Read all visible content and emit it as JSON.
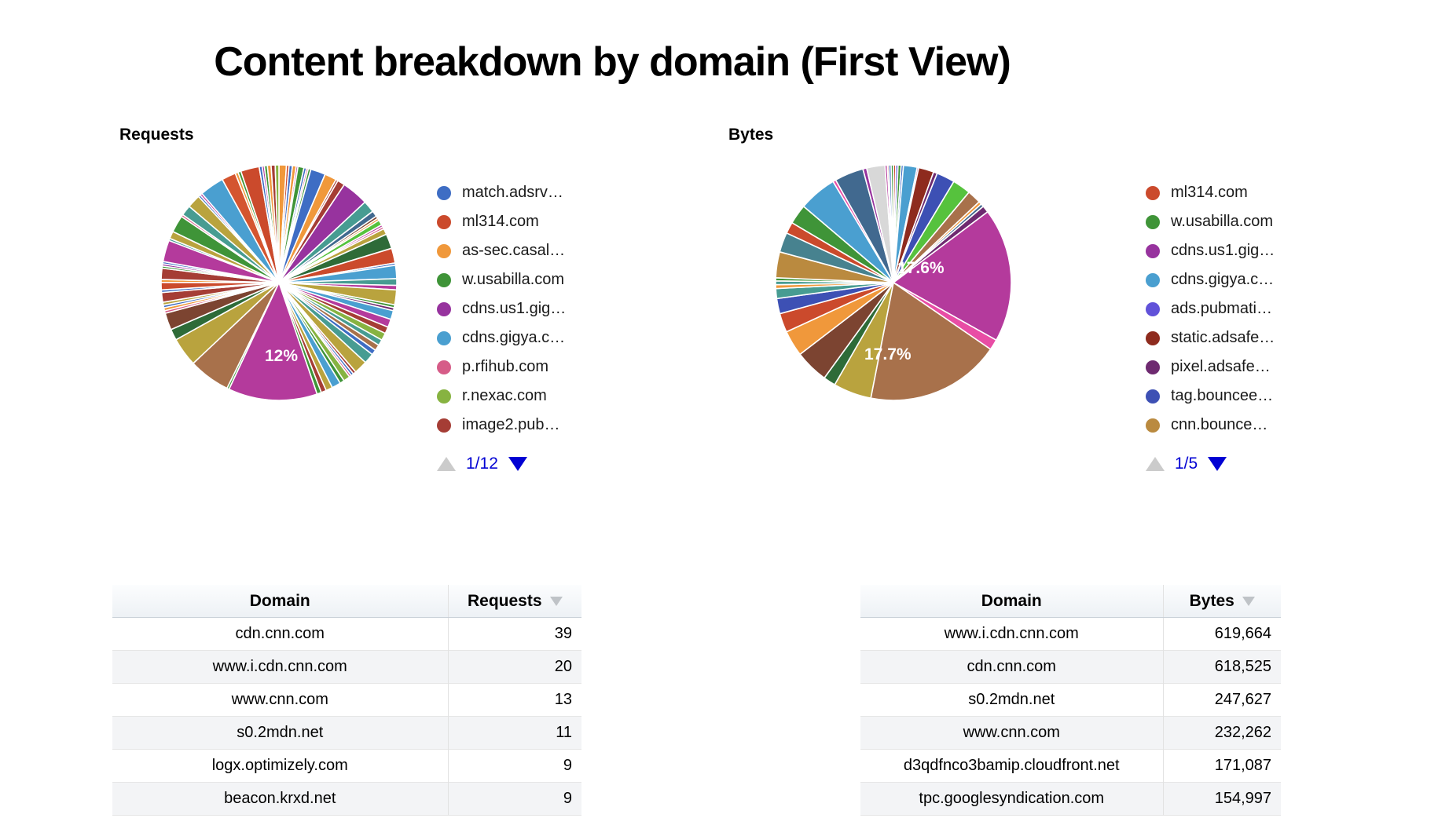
{
  "page_title": "Content breakdown by domain (First View)",
  "chart_data": [
    {
      "type": "pie",
      "title": "Requests",
      "pct_labels": [
        "12%"
      ],
      "legend": {
        "page": "1/12",
        "items": [
          {
            "label": "match.adsrv…",
            "color": "#3E6DC4"
          },
          {
            "label": "ml314.com",
            "color": "#CB4A2C"
          },
          {
            "label": "as-sec.casal…",
            "color": "#F0983B"
          },
          {
            "label": "w.usabilla.com",
            "color": "#3F9438"
          },
          {
            "label": "cdns.us1.gig…",
            "color": "#97339E"
          },
          {
            "label": "cdns.gigya.c…",
            "color": "#4A9FD0"
          },
          {
            "label": "p.rfihub.com",
            "color": "#D65C88"
          },
          {
            "label": "r.nexac.com",
            "color": "#87B341"
          },
          {
            "label": "image2.pub…",
            "color": "#A53D35"
          }
        ]
      },
      "slices": [
        [
          1.0,
          "#F0983B"
        ],
        [
          0.35,
          "#CB4A2C"
        ],
        [
          0.45,
          "#3E6DC4"
        ],
        [
          0.5,
          "#F0983B"
        ],
        [
          0.25,
          "#B43A9C"
        ],
        [
          0.8,
          "#3F9438"
        ],
        [
          0.35,
          "#3E6DC4"
        ],
        [
          0.25,
          "#D65C88"
        ],
        [
          0.35,
          "#3F9438"
        ],
        [
          2.0,
          "#3E6DC4"
        ],
        [
          1.6,
          "#F0983B"
        ],
        [
          0.3,
          "#A53D35"
        ],
        [
          1.0,
          "#A53D35"
        ],
        [
          3.6,
          "#97339E"
        ],
        [
          1.6,
          "#479C92"
        ],
        [
          0.8,
          "#41698F"
        ],
        [
          0.35,
          "#7C4431"
        ],
        [
          0.3,
          "#F0983B"
        ],
        [
          0.7,
          "#56C23D"
        ],
        [
          0.3,
          "#B43A9C"
        ],
        [
          0.3,
          "#D65C88"
        ],
        [
          0.8,
          "#B9A33E"
        ],
        [
          2.0,
          "#2E6B38"
        ],
        [
          2.0,
          "#CB4A2C"
        ],
        [
          0.3,
          "#3E6DC4"
        ],
        [
          1.8,
          "#4A9FD0"
        ],
        [
          0.9,
          "#479C92"
        ],
        [
          0.6,
          "#B43A9C"
        ],
        [
          2.0,
          "#B9A33E"
        ],
        [
          0.4,
          "#3F9438"
        ],
        [
          0.4,
          "#6E2A70"
        ],
        [
          1.2,
          "#4A9FD0"
        ],
        [
          1.1,
          "#B43A9C"
        ],
        [
          0.9,
          "#A53D35"
        ],
        [
          1.0,
          "#87B341"
        ],
        [
          0.8,
          "#479C92"
        ],
        [
          0.8,
          "#A8714B"
        ],
        [
          0.7,
          "#3E6DC4"
        ],
        [
          1.4,
          "#479C92"
        ],
        [
          1.8,
          "#B9A33E"
        ],
        [
          0.4,
          "#A53D35"
        ],
        [
          0.35,
          "#3E6DC4"
        ],
        [
          0.3,
          "#D65C88"
        ],
        [
          0.9,
          "#87B341"
        ],
        [
          0.6,
          "#3F9438"
        ],
        [
          1.2,
          "#4A9FD0"
        ],
        [
          0.9,
          "#B9A33E"
        ],
        [
          0.7,
          "#A53D35"
        ],
        [
          0.6,
          "#3F9438"
        ],
        [
          12.0,
          "#B43A9C"
        ],
        [
          0.3,
          "#3F9438"
        ],
        [
          5.6,
          "#A8714B"
        ],
        [
          3.9,
          "#B9A33E"
        ],
        [
          1.5,
          "#2E6B38"
        ],
        [
          2.3,
          "#7C4431"
        ],
        [
          0.35,
          "#D65C88"
        ],
        [
          0.4,
          "#F0983B"
        ],
        [
          0.35,
          "#3E6DC4"
        ],
        [
          0.4,
          "#B9A33E"
        ],
        [
          1.3,
          "#A53D35"
        ],
        [
          0.35,
          "#3E6DC4"
        ],
        [
          1.0,
          "#CB4A2C"
        ],
        [
          0.4,
          "#F0983B"
        ],
        [
          1.5,
          "#A53D35"
        ],
        [
          0.3,
          "#3F9438"
        ],
        [
          0.3,
          "#97339E"
        ],
        [
          0.3,
          "#3E6DC4"
        ],
        [
          2.9,
          "#B43A9C"
        ],
        [
          0.3,
          "#479C92"
        ],
        [
          1.0,
          "#B9A33E"
        ],
        [
          2.3,
          "#3F9438"
        ],
        [
          0.3,
          "#D65C88"
        ],
        [
          1.4,
          "#479C92"
        ],
        [
          1.8,
          "#B9A33E"
        ],
        [
          0.3,
          "#3E6DC4"
        ],
        [
          0.3,
          "#B43A9C"
        ],
        [
          3.3,
          "#4A9FD0"
        ],
        [
          1.9,
          "#D4552F"
        ],
        [
          0.4,
          "#F0983B"
        ],
        [
          0.4,
          "#3F9438"
        ],
        [
          2.5,
          "#CB4A2C"
        ],
        [
          0.4,
          "#3E6DC4"
        ],
        [
          0.3,
          "#B43A9C"
        ],
        [
          0.4,
          "#3F9438"
        ],
        [
          0.5,
          "#F0983B"
        ],
        [
          0.55,
          "#A53D35"
        ],
        [
          0.5,
          "#87B341"
        ]
      ]
    },
    {
      "type": "pie",
      "title": "Bytes",
      "pct_labels": [
        "17.6%",
        "17.7%"
      ],
      "legend": {
        "page": "1/5",
        "items": [
          {
            "label": "ml314.com",
            "color": "#CB4A2C"
          },
          {
            "label": "w.usabilla.com",
            "color": "#3F9438"
          },
          {
            "label": "cdns.us1.gig…",
            "color": "#97339E"
          },
          {
            "label": "cdns.gigya.c…",
            "color": "#4A9FD0"
          },
          {
            "label": "ads.pubmati…",
            "color": "#6152D9"
          },
          {
            "label": "static.adsafe…",
            "color": "#8E2B1E"
          },
          {
            "label": "pixel.adsafe…",
            "color": "#6E2A70"
          },
          {
            "label": "tag.bouncee…",
            "color": "#3D50B4"
          },
          {
            "label": "cnn.bounce…",
            "color": "#BA8A3F"
          }
        ]
      },
      "slices": [
        [
          0.3,
          "#CB4A2C"
        ],
        [
          0.3,
          "#6152D9"
        ],
        [
          0.4,
          "#3F9438"
        ],
        [
          0.3,
          "#3E6DC4"
        ],
        [
          1.8,
          "#4A9FD0"
        ],
        [
          0.2,
          "#B43A9C"
        ],
        [
          2.0,
          "#8E2B1E"
        ],
        [
          0.5,
          "#6E2A70"
        ],
        [
          2.4,
          "#3D50B4"
        ],
        [
          2.4,
          "#56C23D"
        ],
        [
          1.8,
          "#A8714B"
        ],
        [
          0.4,
          "#F0983B"
        ],
        [
          0.4,
          "#41698F"
        ],
        [
          0.9,
          "#6E2A70"
        ],
        [
          17.6,
          "#B43A9C"
        ],
        [
          1.4,
          "#E84DA5"
        ],
        [
          17.7,
          "#A8714B"
        ],
        [
          5.0,
          "#B9A33E"
        ],
        [
          1.6,
          "#2E6B38"
        ],
        [
          4.4,
          "#7C4431"
        ],
        [
          3.4,
          "#F0983B"
        ],
        [
          2.5,
          "#CB4A2C"
        ],
        [
          2.0,
          "#3D50B4"
        ],
        [
          1.3,
          "#479C92"
        ],
        [
          0.5,
          "#F0983B"
        ],
        [
          0.5,
          "#479C92"
        ],
        [
          0.4,
          "#3F9438"
        ],
        [
          3.4,
          "#BA8A3F"
        ],
        [
          2.6,
          "#47828F"
        ],
        [
          1.5,
          "#CB4A2C"
        ],
        [
          2.6,
          "#3F9438"
        ],
        [
          5.0,
          "#4A9FD0"
        ],
        [
          0.4,
          "#E84DA5"
        ],
        [
          3.8,
          "#41698F"
        ],
        [
          0.5,
          "#97339E"
        ],
        [
          2.4,
          "#D8D8D8"
        ],
        [
          0.3,
          "#B43A9C"
        ],
        [
          0.2,
          "#CB4A2C"
        ],
        [
          0.3,
          "#3E6DC4"
        ],
        [
          0.3,
          "#3F9438"
        ]
      ]
    }
  ],
  "tables": [
    {
      "columns": [
        "Domain",
        "Requests"
      ],
      "rows": [
        [
          "cdn.cnn.com",
          "39"
        ],
        [
          "www.i.cdn.cnn.com",
          "20"
        ],
        [
          "www.cnn.com",
          "13"
        ],
        [
          "s0.2mdn.net",
          "11"
        ],
        [
          "logx.optimizely.com",
          "9"
        ],
        [
          "beacon.krxd.net",
          "9"
        ]
      ]
    },
    {
      "columns": [
        "Domain",
        "Bytes"
      ],
      "rows": [
        [
          "www.i.cdn.cnn.com",
          "619,664"
        ],
        [
          "cdn.cnn.com",
          "618,525"
        ],
        [
          "s0.2mdn.net",
          "247,627"
        ],
        [
          "www.cnn.com",
          "232,262"
        ],
        [
          "d3qdfnco3bamip.cloudfront.net",
          "171,087"
        ],
        [
          "tpc.googlesyndication.com",
          "154,997"
        ]
      ]
    }
  ]
}
